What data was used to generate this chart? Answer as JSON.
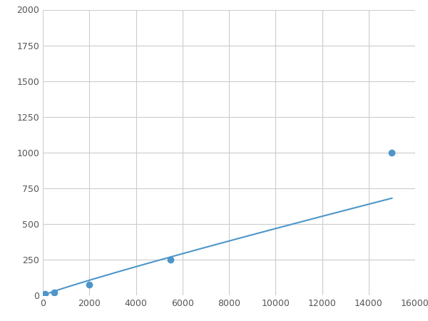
{
  "x": [
    100,
    500,
    2000,
    5500,
    15000
  ],
  "y": [
    10,
    20,
    75,
    250,
    1000
  ],
  "line_color": "#4d96c9",
  "marker_color": "#4d96c9",
  "marker_size": 6,
  "line_width": 1.5,
  "xlim": [
    0,
    16000
  ],
  "ylim": [
    0,
    2000
  ],
  "xticks": [
    0,
    2000,
    4000,
    6000,
    8000,
    10000,
    12000,
    14000,
    16000
  ],
  "yticks": [
    0,
    250,
    500,
    750,
    1000,
    1250,
    1500,
    1750,
    2000
  ],
  "grid": true,
  "background_color": "#ffffff",
  "figsize": [
    6.0,
    4.5
  ],
  "dpi": 100
}
